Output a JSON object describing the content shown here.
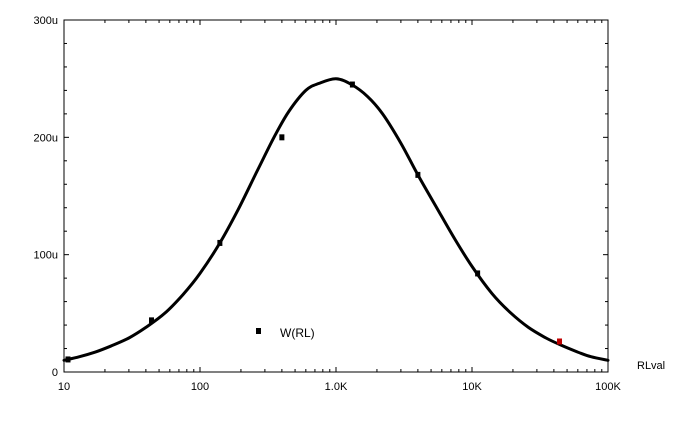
{
  "chart_data": {
    "type": "line",
    "x_scale": "log",
    "xlim": [
      10,
      100000
    ],
    "ylim": [
      0,
      300
    ],
    "x_ticks": [
      {
        "value": 10,
        "label": "10"
      },
      {
        "value": 100,
        "label": "100"
      },
      {
        "value": 1000,
        "label": "1.0K"
      },
      {
        "value": 10000,
        "label": "10K"
      },
      {
        "value": 100000,
        "label": "100K"
      }
    ],
    "y_ticks": [
      {
        "value": 0,
        "label": "0"
      },
      {
        "value": 100,
        "label": "100u"
      },
      {
        "value": 200,
        "label": "200u"
      },
      {
        "value": 300,
        "label": "300u"
      }
    ],
    "xlabel": "RLval",
    "ylabel": "",
    "title": "",
    "grid": false,
    "legend": "bottom-left-center",
    "series": [
      {
        "name": "W(RL)",
        "color": "#000000",
        "x": [
          10,
          13,
          17,
          22,
          30,
          40,
          55,
          75,
          100,
          140,
          190,
          260,
          350,
          450,
          600,
          750,
          1000,
          1300,
          1700,
          2200,
          3000,
          4000,
          5500,
          7500,
          10000,
          14000,
          19000,
          26000,
          35000,
          45000,
          60000,
          75000,
          100000
        ],
        "y": [
          10,
          13,
          17,
          22,
          29,
          38,
          50,
          66,
          84,
          110,
          138,
          170,
          200,
          222,
          240,
          246,
          250,
          245,
          235,
          220,
          195,
          168,
          140,
          113,
          90,
          67,
          51,
          38,
          29,
          23,
          17,
          13,
          10
        ]
      }
    ],
    "markers": [
      {
        "x": 10.7,
        "y": 10.7,
        "color": "#000000"
      },
      {
        "x": 44,
        "y": 44,
        "color": "#000000"
      },
      {
        "x": 140,
        "y": 110,
        "color": "#000000"
      },
      {
        "x": 400,
        "y": 200,
        "color": "#000000"
      },
      {
        "x": 1320,
        "y": 245,
        "color": "#000000"
      },
      {
        "x": 4000,
        "y": 168,
        "color": "#000000"
      },
      {
        "x": 11000,
        "y": 84,
        "color": "#000000"
      },
      {
        "x": 44000,
        "y": 26,
        "color": "#c00000"
      }
    ]
  }
}
